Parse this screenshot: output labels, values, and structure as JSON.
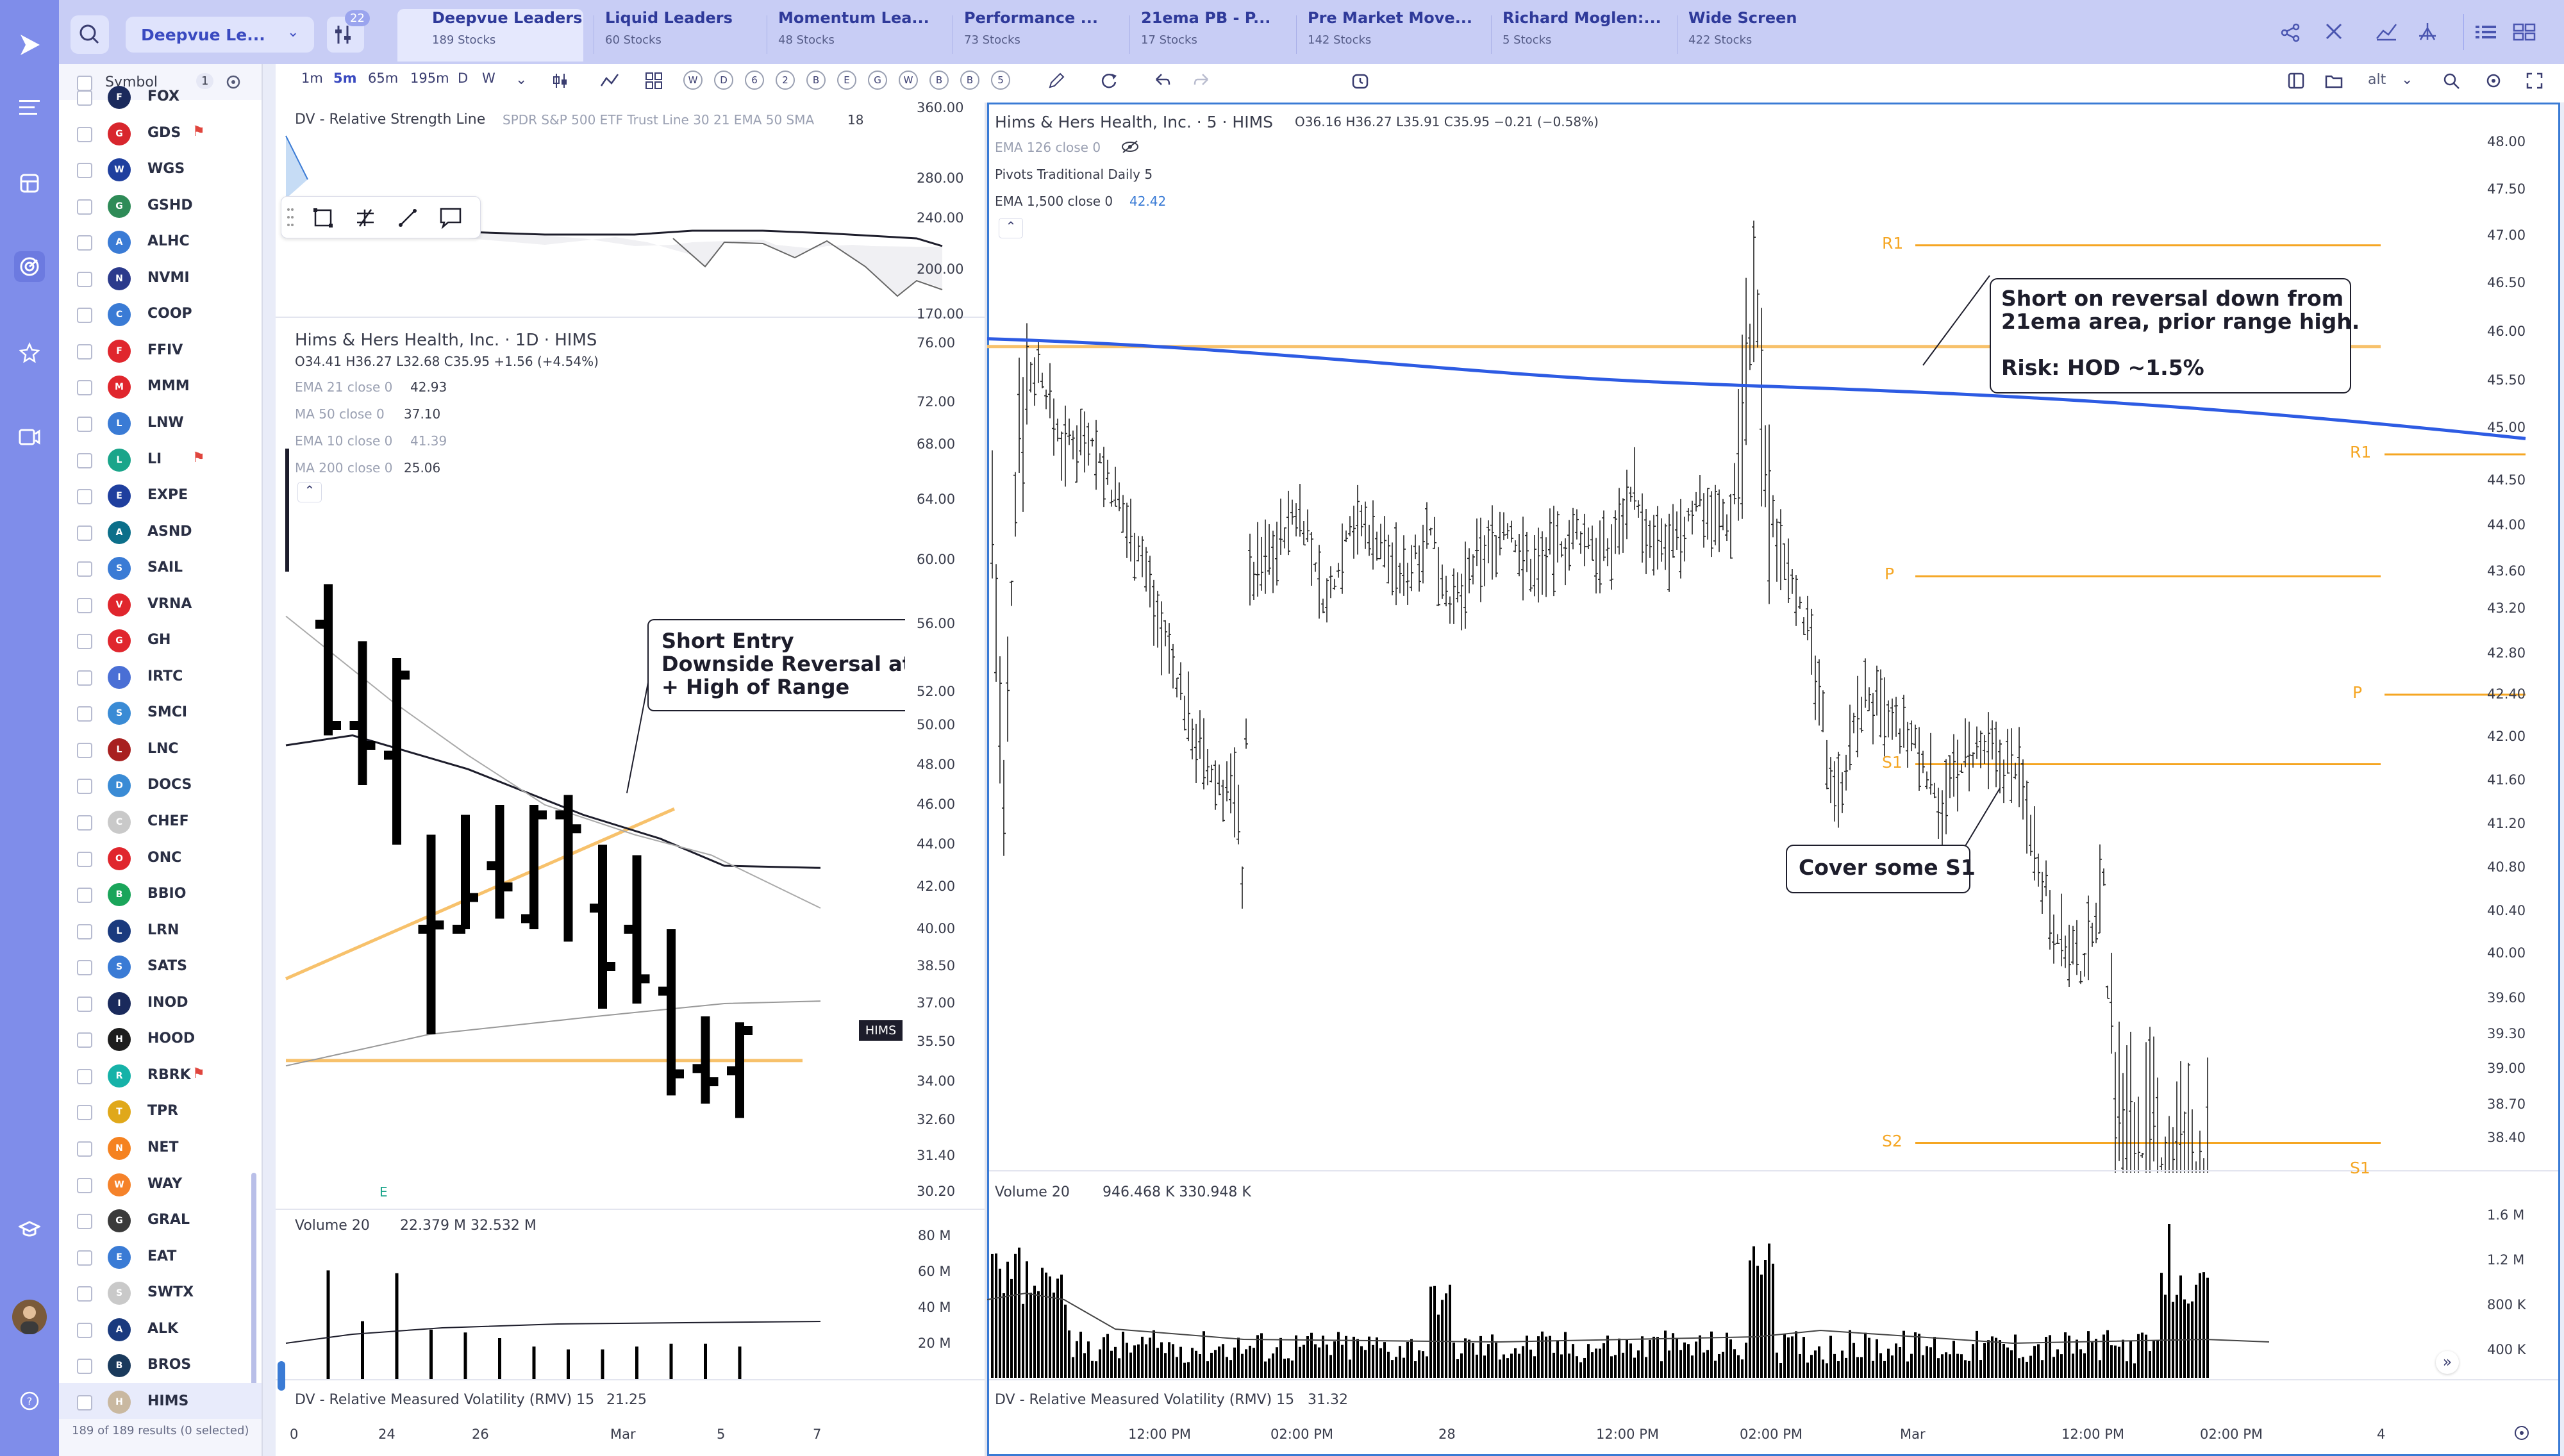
{
  "toolbar": {
    "list_name": "Deepvue Le...",
    "filter_badge": "22",
    "tabs": [
      {
        "label": "Deepvue Leaders",
        "sub": "189 Stocks"
      },
      {
        "label": "Liquid Leaders",
        "sub": "60 Stocks"
      },
      {
        "label": "Momentum Lea...",
        "sub": "48 Stocks"
      },
      {
        "label": "Performance ...",
        "sub": "73 Stocks"
      },
      {
        "label": "21ema PB - P...",
        "sub": "17 Stocks"
      },
      {
        "label": "Pre Market Move...",
        "sub": "142 Stocks"
      },
      {
        "label": "Richard Moglen:...",
        "sub": "5 Stocks"
      },
      {
        "label": "Wide Screen",
        "sub": "422 Stocks"
      }
    ]
  },
  "sidebar": {
    "header_label": "Symbol",
    "header_badge": "1",
    "footer": "189 of 189 results (0 selected)",
    "items": [
      {
        "symbol": "FOX",
        "color": "#1b2a5c",
        "flag": false
      },
      {
        "symbol": "GDS",
        "color": "#d8262d",
        "flag": true
      },
      {
        "symbol": "WGS",
        "color": "#1f3f9e",
        "flag": false
      },
      {
        "symbol": "GSHD",
        "color": "#2e8b57",
        "flag": false
      },
      {
        "symbol": "ALHC",
        "color": "#3a7bd5",
        "flag": false
      },
      {
        "symbol": "NVMI",
        "color": "#2b3a8c",
        "flag": false
      },
      {
        "symbol": "COOP",
        "color": "#3a7bd5",
        "flag": false
      },
      {
        "symbol": "FFIV",
        "color": "#e0262d",
        "flag": false
      },
      {
        "symbol": "MMM",
        "color": "#e0262d",
        "flag": false
      },
      {
        "symbol": "LNW",
        "color": "#3a7bd5",
        "flag": false
      },
      {
        "symbol": "LI",
        "color": "#1aa58a",
        "flag": true
      },
      {
        "symbol": "EXPE",
        "color": "#1f3f9e",
        "flag": false
      },
      {
        "symbol": "ASND",
        "color": "#0c6f8a",
        "flag": false
      },
      {
        "symbol": "SAIL",
        "color": "#3a7bd5",
        "flag": false
      },
      {
        "symbol": "VRNA",
        "color": "#e0262d",
        "flag": false
      },
      {
        "symbol": "GH",
        "color": "#e0262d",
        "flag": false
      },
      {
        "symbol": "IRTC",
        "color": "#4a6fd5",
        "flag": false
      },
      {
        "symbol": "SMCI",
        "color": "#3a8bd5",
        "flag": false
      },
      {
        "symbol": "LNC",
        "color": "#a82020",
        "flag": false
      },
      {
        "symbol": "DOCS",
        "color": "#3a8bd5",
        "flag": false
      },
      {
        "symbol": "CHEF",
        "color": "#c9c9c9",
        "flag": false
      },
      {
        "symbol": "ONC",
        "color": "#e0262d",
        "flag": false
      },
      {
        "symbol": "BBIO",
        "color": "#1aa55a",
        "flag": false
      },
      {
        "symbol": "LRN",
        "color": "#1a3a7e",
        "flag": false
      },
      {
        "symbol": "SATS",
        "color": "#3a7bd5",
        "flag": false
      },
      {
        "symbol": "INOD",
        "color": "#1a2a5c",
        "flag": false
      },
      {
        "symbol": "HOOD",
        "color": "#1d1d1d",
        "flag": false
      },
      {
        "symbol": "RBRK",
        "color": "#16b2a8",
        "flag": true
      },
      {
        "symbol": "TPR",
        "color": "#e0a81a",
        "flag": false
      },
      {
        "symbol": "NET",
        "color": "#f58220",
        "flag": false
      },
      {
        "symbol": "WAY",
        "color": "#f5822a",
        "flag": false
      },
      {
        "symbol": "GRAL",
        "color": "#3a3a3a",
        "flag": false
      },
      {
        "symbol": "EAT",
        "color": "#3a7bd5",
        "flag": false
      },
      {
        "symbol": "SWTX",
        "color": "#c9c9c9",
        "flag": false
      },
      {
        "symbol": "ALK",
        "color": "#1a3a7e",
        "flag": false
      },
      {
        "symbol": "BROS",
        "color": "#1a3a5c",
        "flag": false
      },
      {
        "symbol": "HIMS",
        "color": "#c9b8a0",
        "flag": false
      }
    ]
  },
  "chart_toolbar": {
    "timeframes": [
      "1m",
      "5m",
      "65m",
      "195m",
      "D",
      "W"
    ],
    "active_timeframe": "5m",
    "circle_buttons": [
      "W",
      "D",
      "6",
      "2",
      "B",
      "E",
      "G",
      "W",
      "B",
      "B",
      "5"
    ],
    "alt_label": "alt"
  },
  "rs_pane": {
    "title": "DV - Relative Strength Line",
    "meta": "SPDR S&P 500 ETF Trust Line 30 21 EMA 50 SMA",
    "meta_val": "18"
  },
  "daily_chart": {
    "title": "Hims & Hers Health, Inc. · 1D · HIMS",
    "ohlc": "O34.41  H36.27  L32.68  C35.95  +1.56 (+4.54%)",
    "ind1_name": "EMA 21 close 0",
    "ind1_val": "42.93",
    "ind2_name": "MA 50 close 0",
    "ind2_val": "37.10",
    "ind3_name": "EMA 10 close 0",
    "ind3_val": "41.39",
    "ind4_name": "MA 200 close 0",
    "ind4_val": "25.06",
    "tag": "HIMS",
    "earnings_marker": "E",
    "annotation": "Short Entry\nDownside Reversal at\n+ High of Range",
    "volume_label": "Volume 20",
    "volume_vals": "22.379 M  32.532 M",
    "rmv_label": "DV - Relative Measured Volatility (RMV) 15",
    "rmv_val": "21.25"
  },
  "intraday_chart": {
    "title": "Hims & Hers Health, Inc. · 5 · HIMS",
    "ohlc": "O36.16  H36.27  L35.91  C35.95  −0.21 (−0.58%)",
    "ema126": "EMA 126 close 0",
    "pivots": "Pivots Traditional Daily 5",
    "ema1500_name": "EMA 1,500 close 0",
    "ema1500_val": "42.42",
    "annotation1": "Short on reversal down from\n21ema area, prior range high.\n\nRisk: HOD ~1.5%",
    "annotation2": "Cover some S1",
    "pivot_labels": [
      "R1",
      "P",
      "S1",
      "S2",
      "R1",
      "P",
      "S1"
    ],
    "volume_label": "Volume 20",
    "volume_vals": "946.468 K  330.948 K",
    "rmv_label": "DV - Relative Measured Volatility (RMV) 15",
    "rmv_val": "31.32"
  },
  "chart_data": [
    {
      "type": "candlestick",
      "title": "Hims & Hers Health, Inc. · 1D · HIMS",
      "y_ticks": [
        "76.00",
        "72.00",
        "68.00",
        "64.00",
        "60.00",
        "56.00",
        "52.00",
        "50.00",
        "48.00",
        "46.00",
        "44.00",
        "42.00",
        "40.00",
        "38.50",
        "37.00",
        "35.50",
        "34.00",
        "32.60",
        "31.40",
        "30.20"
      ],
      "x_ticks": [
        "0",
        "24",
        "26",
        "Mar",
        "5",
        "7"
      ],
      "bars": [
        {
          "o": 56.0,
          "h": 58.5,
          "l": 49.5,
          "c": 50.0
        },
        {
          "o": 50.0,
          "h": 55.0,
          "l": 47.0,
          "c": 49.0
        },
        {
          "o": 48.5,
          "h": 54.0,
          "l": 44.0,
          "c": 53.0
        },
        {
          "o": 40.0,
          "h": 44.5,
          "l": 35.8,
          "c": 40.2
        },
        {
          "o": 40.0,
          "h": 45.5,
          "l": 40.0,
          "c": 41.5
        },
        {
          "o": 43.0,
          "h": 46.0,
          "l": 40.5,
          "c": 42.0
        },
        {
          "o": 40.5,
          "h": 46.0,
          "l": 40.0,
          "c": 45.5
        },
        {
          "o": 45.5,
          "h": 46.5,
          "l": 39.5,
          "c": 44.8
        },
        {
          "o": 41.0,
          "h": 44.0,
          "l": 36.8,
          "c": 38.5
        },
        {
          "o": 40.0,
          "h": 43.5,
          "l": 37.0,
          "c": 38.0
        },
        {
          "o": 37.5,
          "h": 40.0,
          "l": 33.5,
          "c": 34.3
        },
        {
          "o": 34.5,
          "h": 36.5,
          "l": 33.2,
          "c": 34.0
        },
        {
          "o": 34.41,
          "h": 36.27,
          "l": 32.68,
          "c": 35.95
        }
      ],
      "volume_ticks": [
        "80 M",
        "60 M",
        "40 M",
        "20 M"
      ]
    },
    {
      "type": "candlestick",
      "title": "Hims & Hers Health, Inc. · 5 · HIMS",
      "y_ticks": [
        "48.00",
        "47.50",
        "47.00",
        "46.50",
        "46.00",
        "45.50",
        "45.00",
        "44.50",
        "44.00",
        "43.60",
        "43.20",
        "42.80",
        "42.40",
        "42.00",
        "41.60",
        "41.20",
        "40.80",
        "40.40",
        "40.00",
        "39.60",
        "39.30",
        "39.00",
        "38.70",
        "38.40"
      ],
      "x_ticks": [
        "12:00 PM",
        "02:00 PM",
        "28",
        "12:00 PM",
        "02:00 PM",
        "Mar",
        "12:00 PM",
        "02:00 PM",
        "4"
      ],
      "pivots": {
        "R1": 46.9,
        "P": 43.55,
        "S1": 41.75,
        "S2": 38.35,
        "R1_next": 44.75,
        "P_next": 42.4
      },
      "ema1500": 42.42,
      "volume_ticks": [
        "1.6 M",
        "1.2 M",
        "800 K",
        "400 K"
      ]
    }
  ]
}
